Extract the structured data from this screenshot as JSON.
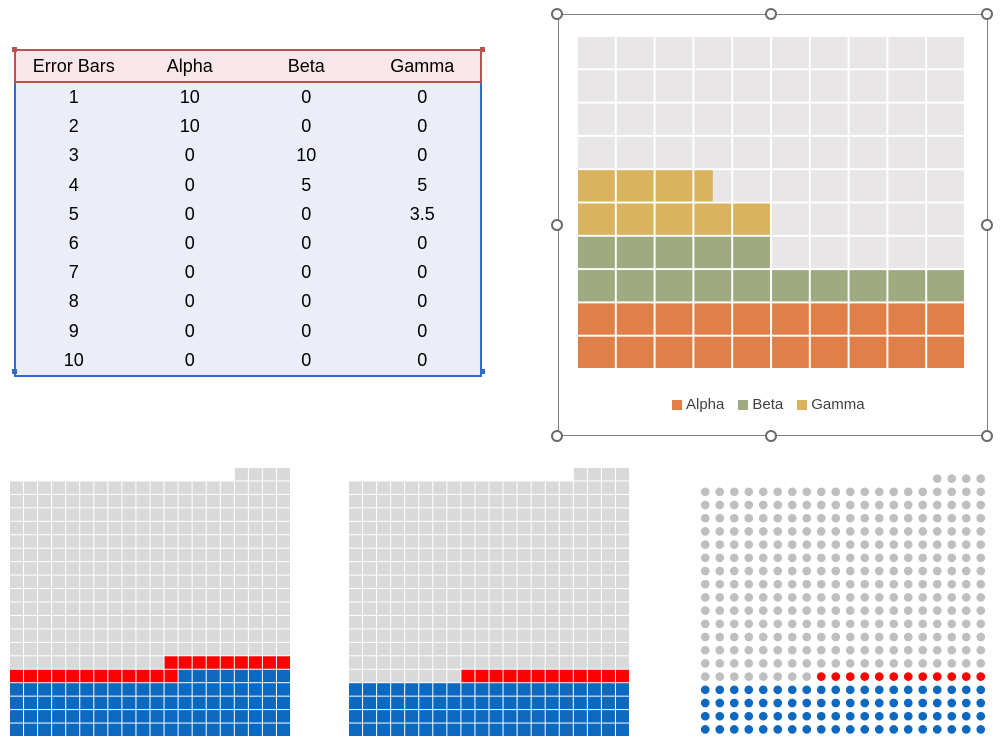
{
  "table": {
    "headers": [
      "Error Bars",
      "Alpha",
      "Beta",
      "Gamma"
    ],
    "rows": [
      [
        "1",
        "10",
        "0",
        "0"
      ],
      [
        "2",
        "10",
        "0",
        "0"
      ],
      [
        "3",
        "0",
        "10",
        "0"
      ],
      [
        "4",
        "0",
        "5",
        "5"
      ],
      [
        "5",
        "0",
        "0",
        "3.5"
      ],
      [
        "6",
        "0",
        "0",
        "0"
      ],
      [
        "7",
        "0",
        "0",
        "0"
      ],
      [
        "8",
        "0",
        "0",
        "0"
      ],
      [
        "9",
        "0",
        "0",
        "0"
      ],
      [
        "10",
        "0",
        "0",
        "0"
      ]
    ]
  },
  "colors": {
    "alpha": "#e07f48",
    "beta": "#a0aa80",
    "gamma": "#d9b35e",
    "empty_main": "#e8e6e6",
    "empty_small": "#d9d9d9",
    "blue": "#0d68c0",
    "red": "#ff0000",
    "dot_gray": "#bfbfbf",
    "table_header_border": "#c0504d",
    "table_body_border": "#2f6bc8"
  },
  "chart_data": [
    {
      "type": "bar",
      "subtype": "stacked waffle",
      "categories": [
        "1",
        "2",
        "3",
        "4",
        "5",
        "6",
        "7",
        "8",
        "9",
        "10"
      ],
      "series": [
        {
          "name": "Alpha",
          "values": [
            10,
            10,
            0,
            0,
            0,
            0,
            0,
            0,
            0,
            0
          ]
        },
        {
          "name": "Beta",
          "values": [
            0,
            0,
            10,
            5,
            0,
            0,
            0,
            0,
            0,
            0
          ]
        },
        {
          "name": "Gamma",
          "values": [
            0,
            0,
            0,
            5,
            3.5,
            0,
            0,
            0,
            0,
            0
          ]
        }
      ],
      "ylim": [
        0,
        10
      ],
      "legend": [
        "Alpha",
        "Beta",
        "Gamma"
      ],
      "legend_position": "bottom",
      "grid": true
    },
    {
      "type": "heatmap",
      "subtype": "waffle squares",
      "grid_columns": 20,
      "grid_rows": 20,
      "series": [
        {
          "name": "blue",
          "filled_cells": 88
        },
        {
          "name": "red",
          "filled_cells": 21
        }
      ],
      "total_cells": 384
    },
    {
      "type": "heatmap",
      "subtype": "waffle squares",
      "grid_columns": 20,
      "grid_rows": 20,
      "series": [
        {
          "name": "blue",
          "filled_cells": 80
        },
        {
          "name": "red",
          "filled_cells": 12
        }
      ],
      "total_cells": 384
    },
    {
      "type": "scatter",
      "subtype": "waffle dots",
      "grid_columns": 20,
      "grid_rows": 20,
      "series": [
        {
          "name": "blue",
          "filled_cells": 80
        },
        {
          "name": "red",
          "filled_cells": 12
        }
      ],
      "total_cells": 384
    }
  ]
}
